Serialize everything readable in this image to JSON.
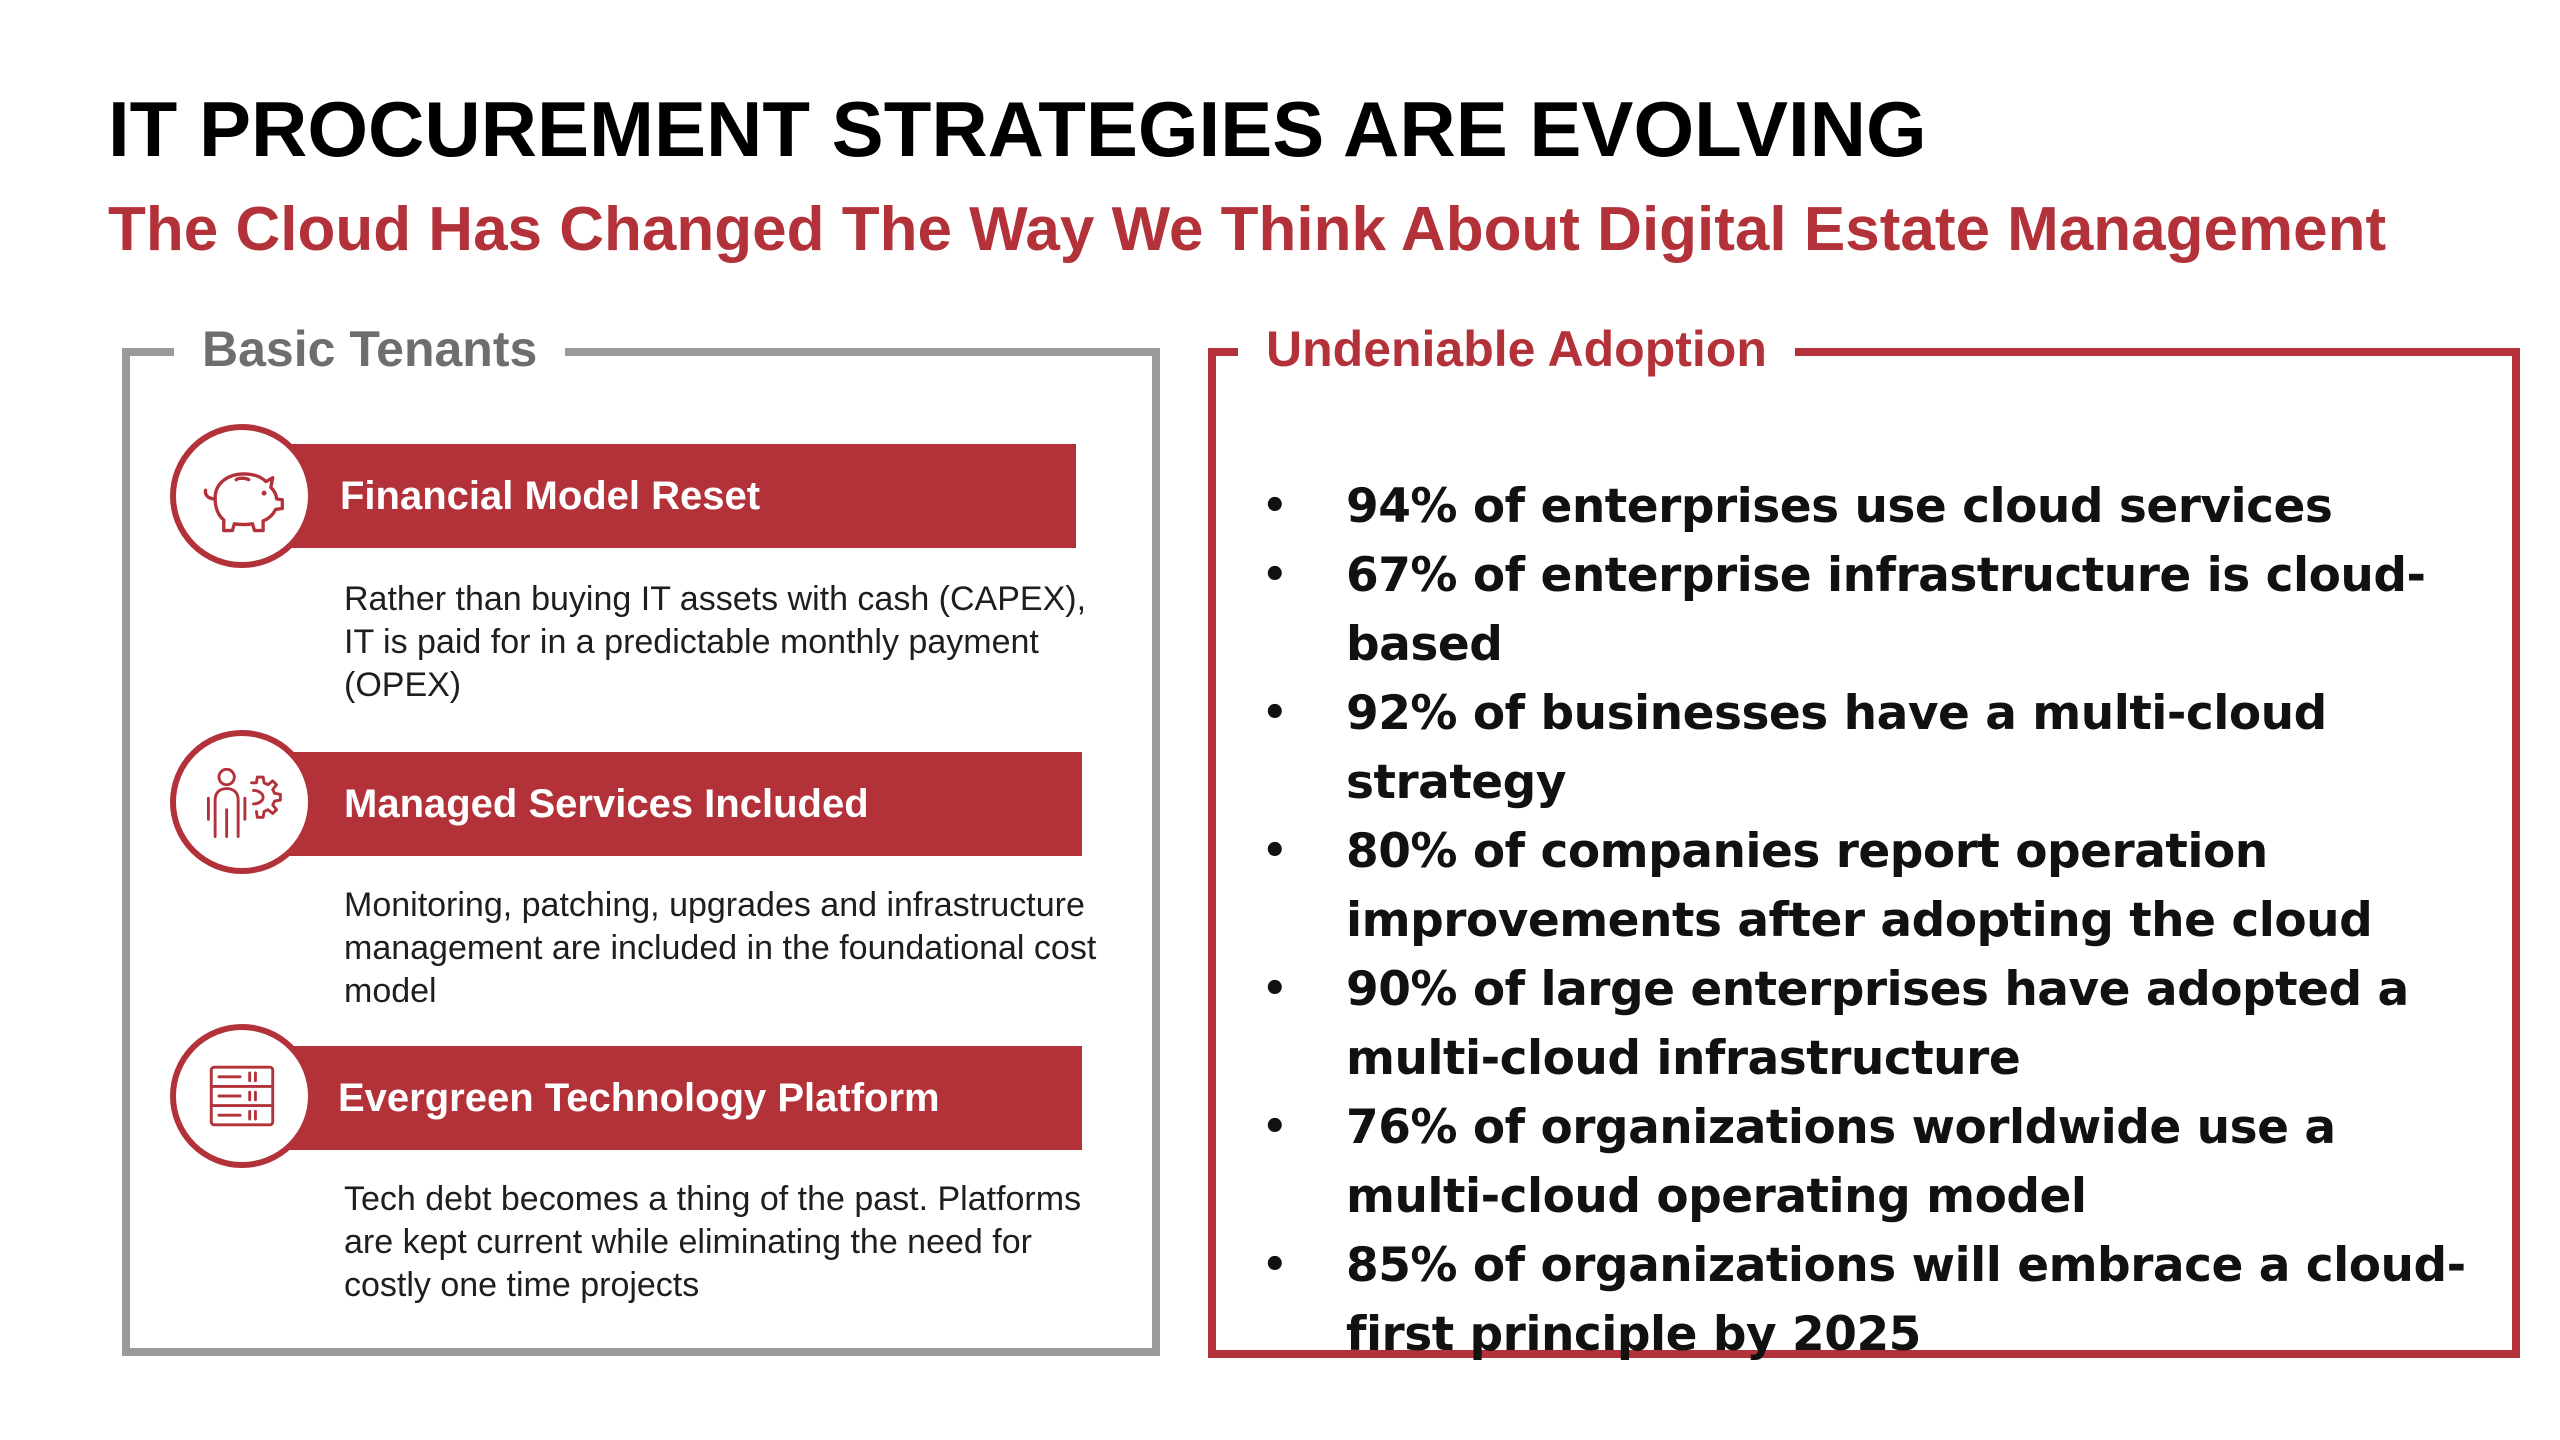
{
  "title": "IT PROCUREMENT STRATEGIES ARE EVOLVING",
  "subtitle": "The Cloud Has Changed The Way We Think About Digital Estate Management",
  "colors": {
    "accent": "#b3323a",
    "panel_border_gray": "#9a9a9a",
    "legend_gray": "#6e6e6e"
  },
  "left_panel": {
    "heading": "Basic Tenants",
    "tenants": [
      {
        "icon": "piggy-bank-icon",
        "label": "Financial Model Reset",
        "description": "Rather than buying IT assets with cash (CAPEX), IT is paid for in a predictable monthly payment (OPEX)"
      },
      {
        "icon": "person-gear-icon",
        "label": "Managed Services Included",
        "description": "Monitoring, patching, upgrades and infrastructure management are included in the foundational cost model"
      },
      {
        "icon": "server-rack-icon",
        "label": "Evergreen Technology Platform",
        "description": "Tech debt becomes a thing of the past. Platforms are kept current while eliminating the need for costly one time projects"
      }
    ]
  },
  "right_panel": {
    "heading": "Undeniable Adoption",
    "bullet": "•",
    "stats": [
      "94% of enterprises use cloud services",
      "67% of enterprise infrastructure is cloud-based",
      "92% of businesses have a multi-cloud strategy",
      "80% of companies report operation improvements after adopting the cloud",
      "90% of large enterprises have adopted a multi-cloud infrastructure",
      "76% of organizations worldwide use a multi-cloud operating model",
      "85% of organizations will embrace a cloud-first principle by 2025"
    ]
  }
}
